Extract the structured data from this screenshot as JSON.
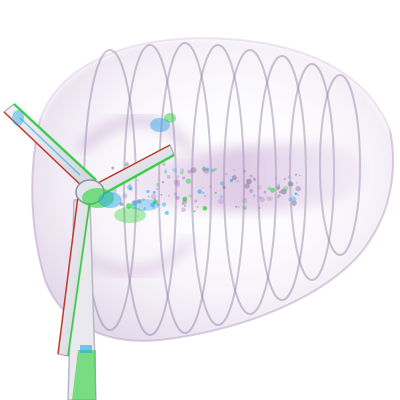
{
  "scene": {
    "subject_icon": "wind-turbine-wake-volume-render",
    "colors": {
      "background": "#ffffff",
      "wake_shell": "#c9b3d6",
      "wake_core": "#b58ac4",
      "vortex_ring": "#8f7fa3",
      "blade_edge": "#c0392b",
      "blade_face": "#d8dce4",
      "vorticity_high": "#1fd12a",
      "vorticity_mid": "#26a9e8",
      "tower": "#e9e9ee"
    }
  }
}
